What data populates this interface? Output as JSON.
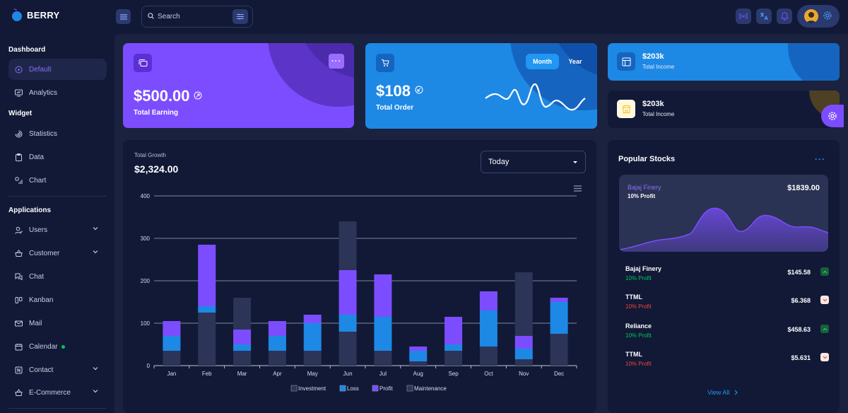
{
  "brand": {
    "name": "BERRY"
  },
  "search": {
    "placeholder": "Search"
  },
  "sidebar": {
    "sections": [
      "Dashboard",
      "Widget",
      "Applications"
    ],
    "items": [
      {
        "label": "Default",
        "icon": "dashboard-icon"
      },
      {
        "label": "Analytics",
        "icon": "device-analytics-icon"
      },
      {
        "label": "Statistics",
        "icon": "chart-arcs-icon"
      },
      {
        "label": "Data",
        "icon": "clipboard-list-icon"
      },
      {
        "label": "Chart",
        "icon": "chart-infographic-icon"
      },
      {
        "label": "Users",
        "icon": "user-check-icon"
      },
      {
        "label": "Customer",
        "icon": "basket-icon"
      },
      {
        "label": "Chat",
        "icon": "messages-icon"
      },
      {
        "label": "Kanban",
        "icon": "layout-kanban-icon"
      },
      {
        "label": "Mail",
        "icon": "mail-icon"
      },
      {
        "label": "Calendar",
        "icon": "calendar-icon"
      },
      {
        "label": "Contact",
        "icon": "nfc-icon"
      },
      {
        "label": "E-Commerce",
        "icon": "basket-icon"
      }
    ]
  },
  "cards": {
    "earning": {
      "value": "$500.00",
      "label": "Total Earning"
    },
    "order": {
      "value": "$108",
      "label": "Total Order",
      "toggle_on": "Month",
      "toggle_off": "Year"
    },
    "income1": {
      "value": "$203k",
      "label": "Total Income"
    },
    "income2": {
      "value": "$203k",
      "label": "Total Income"
    }
  },
  "growth": {
    "label": "Total Growth",
    "value": "$2,324.00",
    "period": "Today"
  },
  "chart_data": {
    "type": "bar",
    "stacked": true,
    "categories": [
      "Jan",
      "Feb",
      "Mar",
      "Apr",
      "May",
      "Jun",
      "Jul",
      "Aug",
      "Sep",
      "Oct",
      "Nov",
      "Dec"
    ],
    "ylim": [
      0,
      400
    ],
    "yticks": [
      0,
      100,
      200,
      300,
      400
    ],
    "legend_position": "bottom",
    "grid": true,
    "series": [
      {
        "name": "Investment",
        "color": "#2c3457",
        "values": [
          35,
          125,
          35,
          35,
          35,
          80,
          35,
          10,
          35,
          45,
          15,
          75
        ]
      },
      {
        "name": "Loss",
        "color": "#1e88e5",
        "values": [
          35,
          15,
          15,
          35,
          65,
          40,
          80,
          25,
          15,
          85,
          25,
          75
        ]
      },
      {
        "name": "Profit",
        "color": "#7c4dff",
        "values": [
          35,
          145,
          35,
          35,
          20,
          105,
          100,
          10,
          65,
          45,
          30,
          10
        ]
      },
      {
        "name": "Maintenance",
        "color": "#2c3457",
        "values": [
          0,
          0,
          75,
          0,
          0,
          115,
          0,
          0,
          0,
          0,
          150,
          0
        ]
      }
    ]
  },
  "stocks": {
    "title": "Popular Stocks",
    "hero": {
      "name": "Bajaj Finery",
      "profit": "10% Profit",
      "price": "$1839.00"
    },
    "rows": [
      {
        "name": "Bajaj Finery",
        "profit": "10% Profit",
        "price": "$145.58",
        "trend": "up"
      },
      {
        "name": "TTML",
        "profit": "10% Profit",
        "price": "$6.368",
        "trend": "down"
      },
      {
        "name": "Reliance",
        "profit": "10% Profit",
        "price": "$458.63",
        "trend": "up"
      },
      {
        "name": "TTML",
        "profit": "10% Profit",
        "price": "$5.631",
        "trend": "down"
      }
    ],
    "view_all": "View All"
  },
  "colors": {
    "accent": "#7c4dff",
    "primary": "#1e88e5",
    "success": "#00c853",
    "danger": "#f44336"
  }
}
